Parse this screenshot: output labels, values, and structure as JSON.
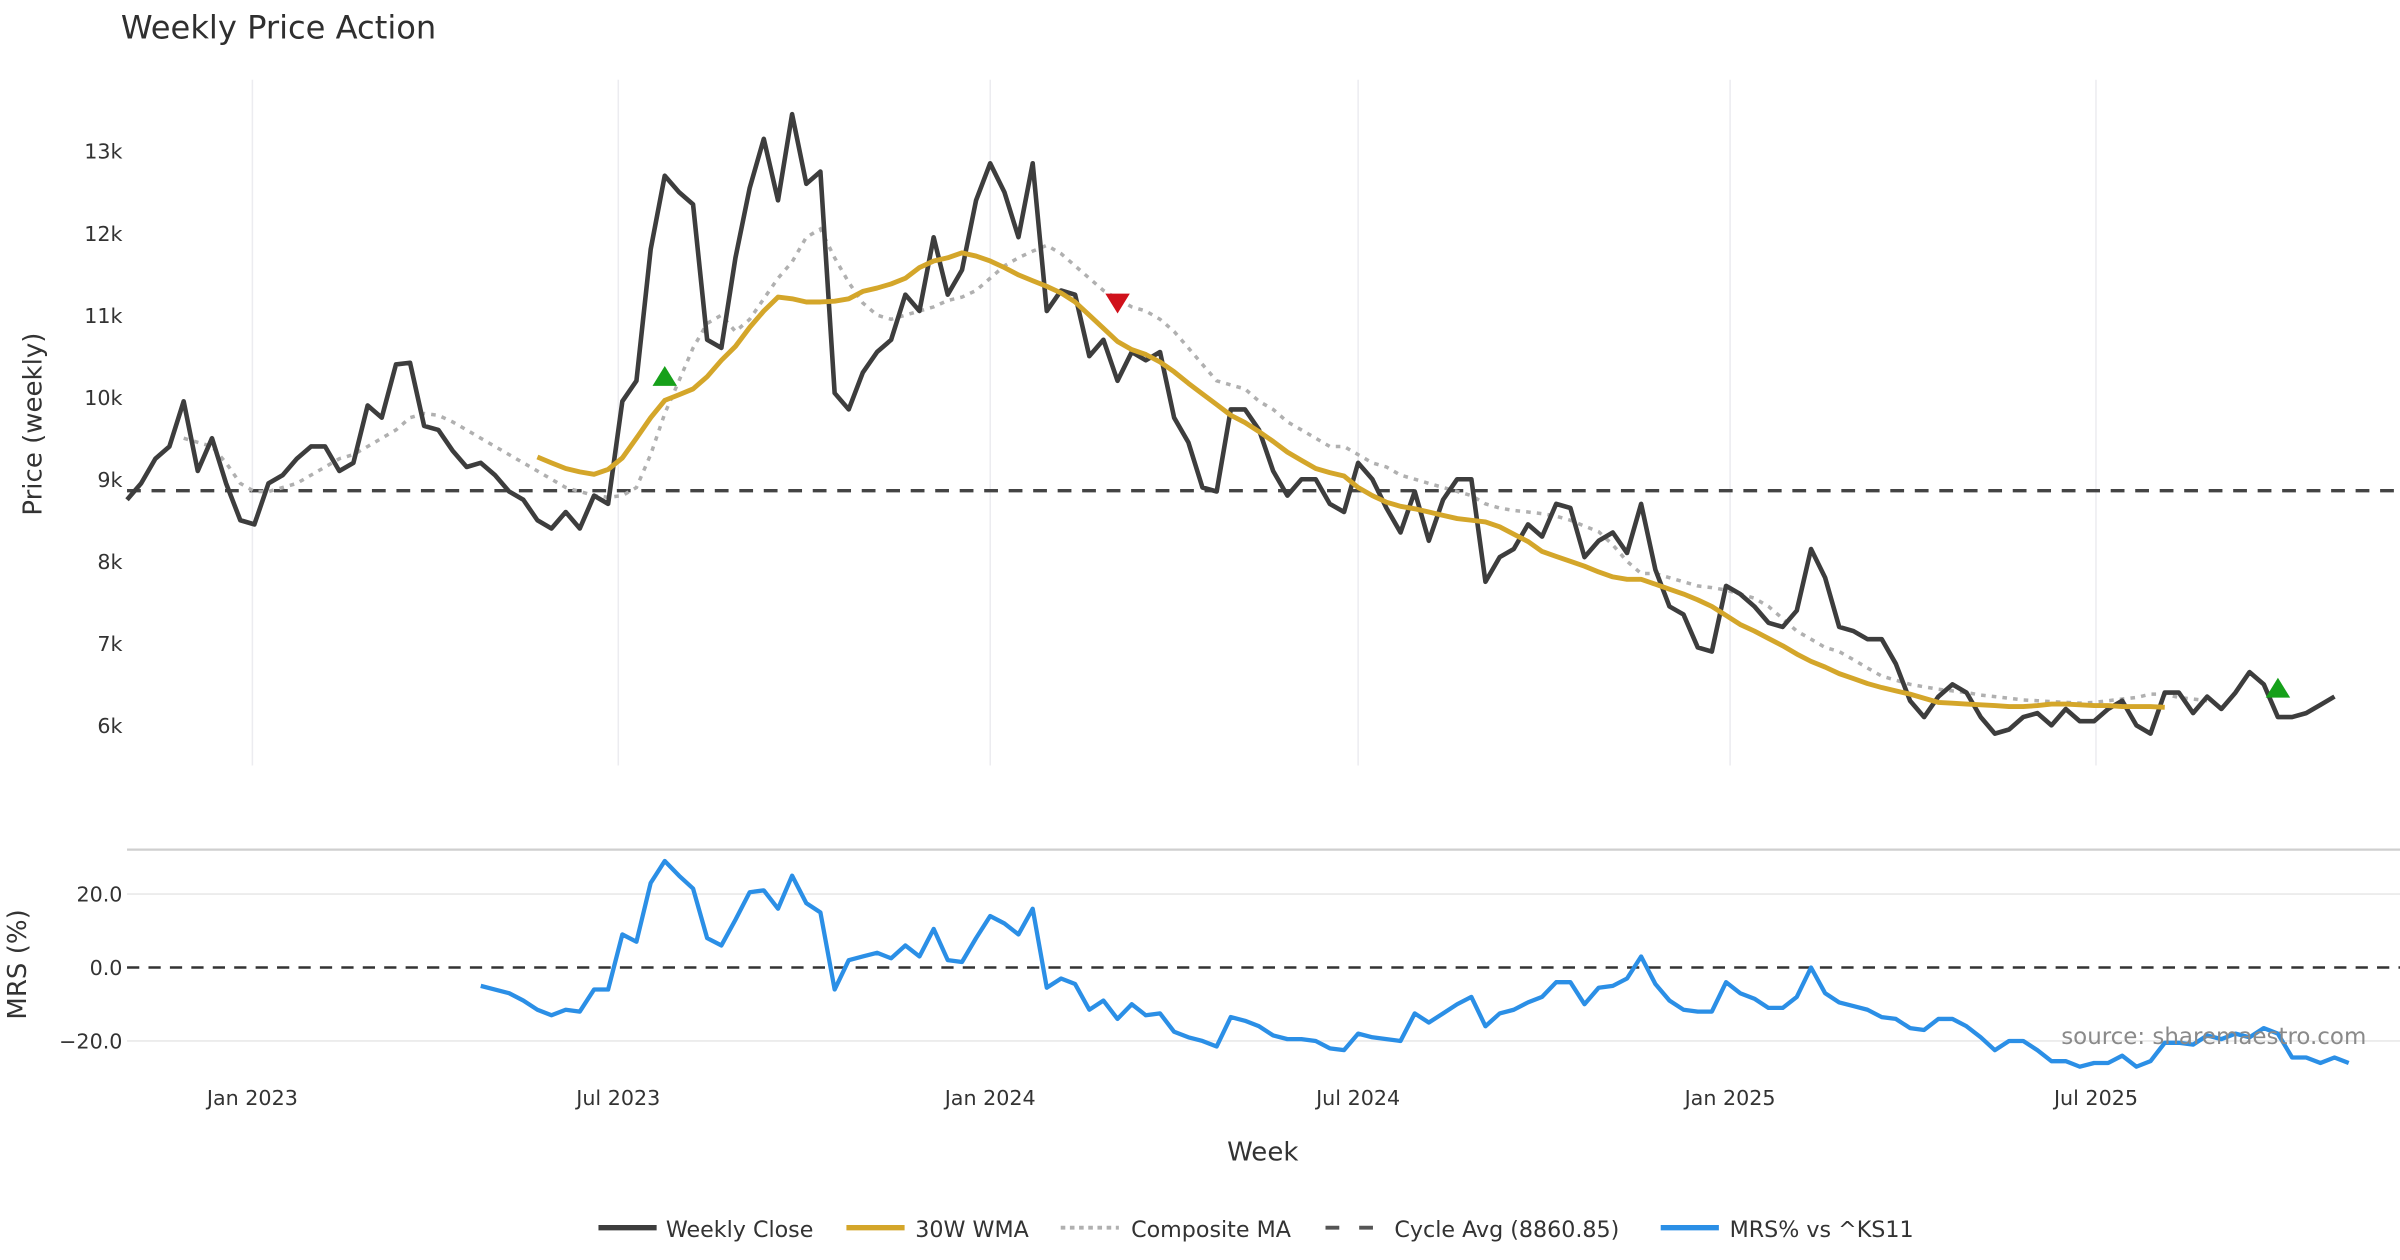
{
  "chart_data": [
    {
      "type": "line",
      "title": "Weekly Price Action",
      "ylabel": "Price (weekly)",
      "xlabel": "Week",
      "ylim": [
        5500,
        13900
      ],
      "yticks": [
        6000,
        7000,
        8000,
        9000,
        10000,
        11000,
        12000,
        13000
      ],
      "ytick_labels": [
        "6k",
        "7k",
        "8k",
        "9k",
        "10k",
        "11k",
        "12k",
        "13k"
      ],
      "x_start": "2022-10-31",
      "x_end": "2025-10-27",
      "xticks": [
        "2023-01-01",
        "2023-07-01",
        "2024-01-01",
        "2024-07-01",
        "2025-01-01",
        "2025-07-01"
      ],
      "xtick_labels": [
        "Jan 2023",
        "Jul 2023",
        "Jan 2024",
        "Jul 2024",
        "Jan 2025",
        "Jul 2025"
      ],
      "grid": true,
      "series": [
        {
          "name": "Weekly Close",
          "color": "#3d3d3d",
          "start_week": 0,
          "values": [
            8750,
            8950,
            9250,
            9400,
            9950,
            9100,
            9500,
            8950,
            8500,
            8450,
            8950,
            9050,
            9250,
            9400,
            9400,
            9100,
            9200,
            9900,
            9750,
            10400,
            10420,
            9650,
            9600,
            9350,
            9150,
            9200,
            9050,
            8850,
            8750,
            8500,
            8400,
            8600,
            8400,
            8800,
            8700,
            9950,
            10200,
            11800,
            12700,
            12500,
            12350,
            10700,
            10600,
            11700,
            12550,
            13150,
            12400,
            13450,
            12600,
            12750,
            10050,
            9850,
            10300,
            10550,
            10700,
            11250,
            11050,
            11950,
            11250,
            11550,
            12400,
            12850,
            12500,
            11950,
            12850,
            11050,
            11300,
            11250,
            10500,
            10700,
            10200,
            10550,
            10450,
            10550,
            9750,
            9450,
            8900,
            8850,
            9850,
            9850,
            9600,
            9100,
            8800,
            9000,
            9000,
            8700,
            8600,
            9200,
            9000,
            8650,
            8350,
            8850,
            8250,
            8750,
            9000,
            9000,
            7750,
            8050,
            8150,
            8450,
            8300,
            8700,
            8650,
            8050,
            8250,
            8350,
            8100,
            8700,
            7900,
            7450,
            7350,
            6950,
            6900,
            7700,
            7600,
            7450,
            7250,
            7200,
            7400,
            8150,
            7800,
            7200,
            7150,
            7050,
            7050,
            6750,
            6300,
            6100,
            6350,
            6500,
            6400,
            6100,
            5900,
            5950,
            6100,
            6150,
            6000,
            6200,
            6050,
            6050,
            6200,
            6300,
            6000,
            5900,
            6400,
            6400,
            6150,
            6350,
            6200,
            6400,
            6650,
            6500,
            6100,
            6100,
            6150,
            6250,
            6350
          ]
        },
        {
          "name": "30W WMA",
          "color": "#d4a62a",
          "start_week": 29,
          "values": [
            9270,
            9200,
            9130,
            9090,
            9060,
            9120,
            9260,
            9500,
            9750,
            9960,
            10030,
            10100,
            10250,
            10450,
            10620,
            10850,
            11050,
            11220,
            11200,
            11160,
            11160,
            11170,
            11200,
            11290,
            11330,
            11380,
            11450,
            11580,
            11660,
            11700,
            11760,
            11720,
            11660,
            11580,
            11490,
            11420,
            11350,
            11270,
            11160,
            11000,
            10840,
            10680,
            10580,
            10520,
            10430,
            10310,
            10170,
            10040,
            9910,
            9780,
            9690,
            9580,
            9460,
            9330,
            9230,
            9130,
            9080,
            9040,
            8900,
            8800,
            8720,
            8670,
            8640,
            8600,
            8560,
            8520,
            8500,
            8480,
            8420,
            8330,
            8240,
            8120,
            8060,
            8000,
            7940,
            7870,
            7810,
            7780,
            7780,
            7720,
            7660,
            7600,
            7530,
            7450,
            7340,
            7230,
            7150,
            7060,
            6970,
            6870,
            6780,
            6710,
            6630,
            6570,
            6510,
            6460,
            6420,
            6380,
            6330,
            6280,
            6270,
            6260,
            6250,
            6240,
            6230,
            6230,
            6240,
            6260,
            6260,
            6250,
            6240,
            6240,
            6230,
            6230,
            6230,
            6220
          ]
        },
        {
          "name": "Composite MA",
          "color": "#b0b0b0",
          "start_week": 4,
          "values": [
            9500,
            9450,
            9400,
            9200,
            8950,
            8850,
            8850,
            8900,
            8950,
            9050,
            9150,
            9250,
            9300,
            9400,
            9500,
            9600,
            9750,
            9800,
            9780,
            9700,
            9600,
            9500,
            9400,
            9300,
            9200,
            9100,
            9000,
            8900,
            8850,
            8800,
            8780,
            8800,
            8900,
            9300,
            9800,
            10200,
            10600,
            10900,
            11000,
            10800,
            10950,
            11200,
            11450,
            11650,
            11950,
            12050,
            11700,
            11400,
            11150,
            11000,
            10950,
            11000,
            11050,
            11100,
            11180,
            11220,
            11300,
            11450,
            11600,
            11700,
            11780,
            11850,
            11750,
            11600,
            11450,
            11300,
            11200,
            11100,
            11050,
            10950,
            10800,
            10600,
            10400,
            10200,
            10150,
            10100,
            9950,
            9850,
            9700,
            9600,
            9500,
            9400,
            9400,
            9300,
            9200,
            9150,
            9050,
            9000,
            8950,
            8900,
            8850,
            8800,
            8700,
            8650,
            8620,
            8600,
            8580,
            8550,
            8500,
            8430,
            8360,
            8200,
            8000,
            7850,
            7850,
            7800,
            7750,
            7700,
            7680,
            7650,
            7600,
            7550,
            7450,
            7300,
            7150,
            7050,
            6950,
            6900,
            6800,
            6700,
            6600,
            6550,
            6500,
            6470,
            6440,
            6420,
            6400,
            6370,
            6350,
            6330,
            6310,
            6300,
            6290,
            6280,
            6270,
            6280,
            6300,
            6320,
            6340,
            6380,
            6380,
            6340,
            6320,
            6300
          ]
        },
        {
          "name": "Cycle Avg (8860.85)",
          "color": "#444444",
          "value": 8860.85
        }
      ],
      "markers": [
        {
          "type": "buy",
          "color": "#16a01a",
          "week": 38,
          "value": 10250
        },
        {
          "type": "sell",
          "color": "#d0111b",
          "week": 70,
          "value": 11150
        },
        {
          "type": "buy",
          "color": "#16a01a",
          "week": 152,
          "value": 6450
        }
      ]
    },
    {
      "type": "line",
      "ylabel": "MRS (%)",
      "ylim": [
        -29,
        31
      ],
      "yticks": [
        -20,
        0,
        20
      ],
      "ytick_labels": [
        "−20.0",
        "0.0",
        "20.0"
      ],
      "reference_line": 0,
      "series": [
        {
          "name": "MRS% vs ^KS11",
          "color": "#2b8fe6",
          "start_week": 25,
          "values": [
            -5,
            -6,
            -7,
            -9,
            -11.5,
            -13,
            -11.5,
            -12,
            -6,
            -6,
            9,
            7,
            23,
            29,
            25,
            21.5,
            8,
            6,
            13,
            20.5,
            21,
            16,
            25,
            17.5,
            15,
            -6,
            2,
            3,
            4,
            2.5,
            6,
            3,
            10.5,
            2,
            1.5,
            8,
            14,
            12,
            9,
            16,
            -5.5,
            -3,
            -4.5,
            -11.5,
            -9,
            -14,
            -10,
            -13,
            -12.5,
            -17.5,
            -19,
            -20,
            -21.5,
            -13.5,
            -14.5,
            -16,
            -18.5,
            -19.5,
            -19.5,
            -20,
            -22,
            -22.5,
            -18,
            -19,
            -19.5,
            -20,
            -12.5,
            -15,
            -12.5,
            -10,
            -8,
            -16,
            -12.5,
            -11.5,
            -9.5,
            -8,
            -4,
            -4,
            -10,
            -5.5,
            -5,
            -3,
            3,
            -4.5,
            -9,
            -11.5,
            -12,
            -12,
            -4,
            -7,
            -8.5,
            -11,
            -11,
            -8,
            0,
            -7,
            -9.5,
            -10.5,
            -11.5,
            -13.5,
            -14,
            -16.5,
            -17,
            -14,
            -14,
            -16,
            -19,
            -22.5,
            -20,
            -20,
            -22.5,
            -25.5,
            -25.5,
            -27,
            -26,
            -26,
            -24,
            -27,
            -25.5,
            -20.5,
            -20.5,
            -21,
            -18.5,
            -19.5,
            -18,
            -19,
            -16.5,
            -18,
            -24.5,
            -24.5,
            -26,
            -24.5,
            -26
          ]
        }
      ],
      "source": "source: sharemaestro.com"
    }
  ],
  "legend": {
    "placement": "bottom-center",
    "items": [
      "Weekly Close",
      "30W WMA",
      "Composite MA",
      "Cycle Avg (8860.85)",
      "MRS% vs ^KS11"
    ]
  }
}
